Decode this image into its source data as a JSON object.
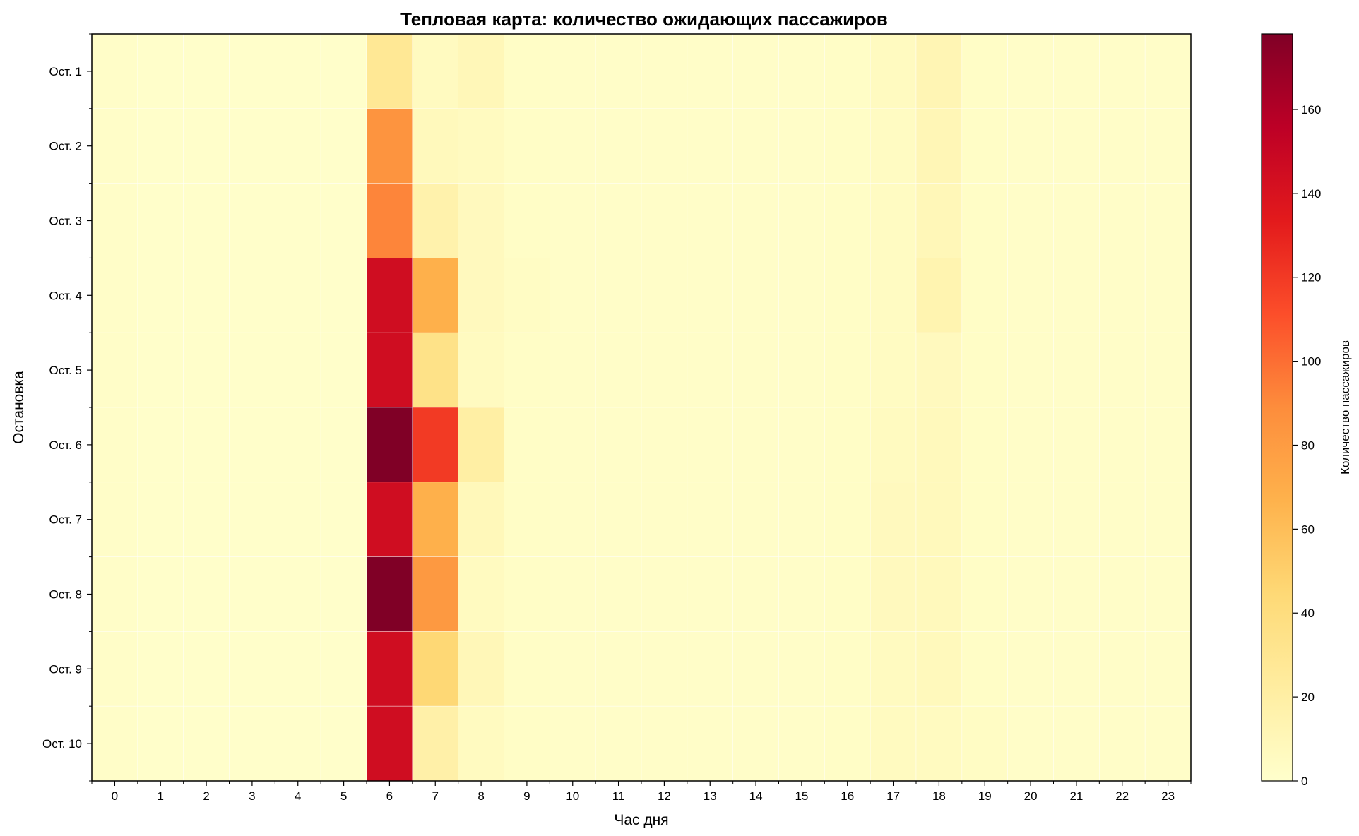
{
  "chart_data": {
    "type": "heatmap",
    "title": "Тепловая карта: количество ожидающих пассажиров",
    "xlabel": "Час дня",
    "ylabel": "Остановка",
    "colorbar_label": "Количество пассажиров",
    "colormap": "YlOrRd",
    "colorbar_range": [
      0,
      178
    ],
    "colorbar_ticks": [
      0,
      20,
      40,
      60,
      80,
      100,
      120,
      140,
      160
    ],
    "colorbar_tick_labels": [
      "0",
      "20",
      "40",
      "60",
      "80",
      "100",
      "120",
      "140",
      "160"
    ],
    "x": [
      "0",
      "1",
      "2",
      "3",
      "4",
      "5",
      "6",
      "7",
      "8",
      "9",
      "10",
      "11",
      "12",
      "13",
      "14",
      "15",
      "16",
      "17",
      "18",
      "19",
      "20",
      "21",
      "22",
      "23"
    ],
    "y": [
      "Ост. 1",
      "Ост. 2",
      "Ост. 3",
      "Ост. 4",
      "Ост. 5",
      "Ост. 6",
      "Ост. 7",
      "Ост. 8",
      "Ост. 9",
      "Ост. 10"
    ],
    "values": [
      [
        2,
        1,
        1,
        1,
        1,
        1,
        28,
        6,
        10,
        3,
        2,
        2,
        2,
        2,
        2,
        2,
        3,
        6,
        12,
        3,
        2,
        2,
        2,
        2
      ],
      [
        2,
        1,
        1,
        1,
        1,
        1,
        85,
        8,
        6,
        3,
        2,
        2,
        2,
        2,
        2,
        2,
        3,
        5,
        11,
        3,
        2,
        2,
        2,
        2
      ],
      [
        2,
        1,
        1,
        1,
        1,
        1,
        92,
        16,
        7,
        3,
        2,
        2,
        2,
        2,
        2,
        2,
        3,
        5,
        10,
        3,
        2,
        2,
        2,
        2
      ],
      [
        2,
        1,
        1,
        1,
        1,
        1,
        145,
        68,
        7,
        4,
        2,
        2,
        2,
        2,
        2,
        2,
        3,
        5,
        14,
        3,
        2,
        2,
        2,
        2
      ],
      [
        2,
        1,
        1,
        1,
        1,
        1,
        145,
        35,
        6,
        3,
        2,
        2,
        2,
        2,
        2,
        2,
        3,
        5,
        7,
        3,
        2,
        2,
        2,
        2
      ],
      [
        2,
        1,
        1,
        1,
        1,
        1,
        178,
        120,
        20,
        3,
        2,
        2,
        2,
        2,
        2,
        2,
        3,
        6,
        8,
        3,
        2,
        2,
        2,
        2
      ],
      [
        2,
        1,
        1,
        1,
        1,
        1,
        145,
        68,
        9,
        3,
        2,
        2,
        2,
        2,
        2,
        2,
        3,
        7,
        8,
        3,
        2,
        2,
        2,
        2
      ],
      [
        2,
        1,
        1,
        1,
        1,
        1,
        178,
        82,
        6,
        3,
        2,
        2,
        2,
        2,
        2,
        2,
        3,
        7,
        8,
        3,
        2,
        2,
        2,
        2
      ],
      [
        2,
        1,
        1,
        1,
        1,
        1,
        145,
        45,
        10,
        3,
        2,
        2,
        2,
        2,
        2,
        2,
        3,
        6,
        8,
        3,
        2,
        2,
        2,
        2
      ],
      [
        2,
        1,
        1,
        1,
        1,
        1,
        145,
        18,
        6,
        3,
        2,
        2,
        2,
        2,
        2,
        2,
        3,
        6,
        6,
        4,
        2,
        2,
        2,
        2
      ]
    ]
  }
}
